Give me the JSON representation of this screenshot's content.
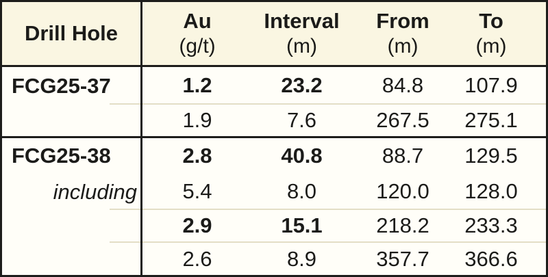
{
  "table": {
    "header": {
      "drill_hole": "Drill Hole",
      "columns": [
        {
          "label": "Au",
          "unit": "(g/t)"
        },
        {
          "label": "Interval",
          "unit": "(m)"
        },
        {
          "label": "From",
          "unit": "(m)"
        },
        {
          "label": "To",
          "unit": "(m)"
        }
      ]
    },
    "rows": [
      {
        "hole": "FCG25-37",
        "au": "1.2",
        "interval": "23.2",
        "from": "84.8",
        "to": "107.9"
      },
      {
        "hole": "",
        "au": "1.9",
        "interval": "7.6",
        "from": "267.5",
        "to": "275.1"
      },
      {
        "hole": "FCG25-38",
        "au": "2.8",
        "interval": "40.8",
        "from": "88.7",
        "to": "129.5"
      },
      {
        "hole": "including",
        "au": "5.4",
        "interval": "8.0",
        "from": "120.0",
        "to": "128.0"
      },
      {
        "hole": "",
        "au": "2.9",
        "interval": "15.1",
        "from": "218.2",
        "to": "233.3"
      },
      {
        "hole": "",
        "au": "2.6",
        "interval": "8.9",
        "from": "357.7",
        "to": "366.6"
      }
    ]
  },
  "colors": {
    "header_bg": "#faf6e2",
    "body_bg": "#fffef8",
    "border": "#1d1d1b",
    "thin_line": "#e3dec6",
    "text": "#1b1b19"
  },
  "chart_data": {
    "type": "table",
    "title": "Drill hole assay results",
    "columns": [
      "Drill Hole",
      "Au (g/t)",
      "Interval (m)",
      "From (m)",
      "To (m)"
    ],
    "rows": [
      [
        "FCG25-37",
        1.2,
        23.2,
        84.8,
        107.9
      ],
      [
        "",
        1.9,
        7.6,
        267.5,
        275.1
      ],
      [
        "FCG25-38",
        2.8,
        40.8,
        88.7,
        129.5
      ],
      [
        "including",
        5.4,
        8.0,
        120.0,
        128.0
      ],
      [
        "",
        2.9,
        15.1,
        218.2,
        233.3
      ],
      [
        "",
        2.6,
        8.9,
        357.7,
        366.6
      ]
    ],
    "emphasis": {
      "bold_rows_au_interval": [
        0,
        2,
        4
      ],
      "italic_cells": [
        [
          3,
          0
        ]
      ]
    }
  }
}
